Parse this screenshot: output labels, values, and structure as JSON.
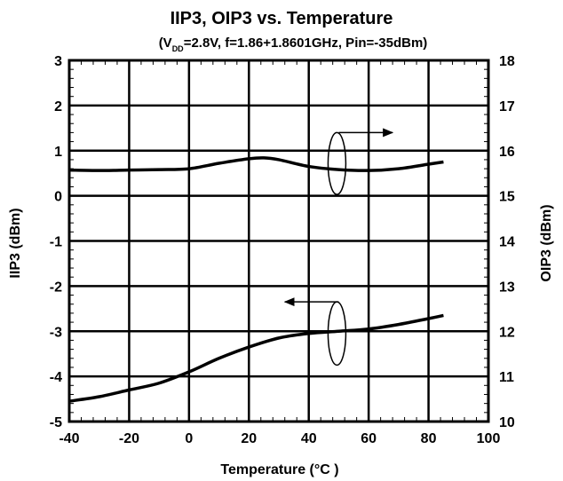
{
  "chart_data": {
    "type": "line",
    "title": "IIP3, OIP3 vs. Temperature",
    "subtitle": {
      "prefix": "(V",
      "subscript": "DD",
      "rest": "=2.8V, f=1.86+1.8601GHz, Pin=-35dBm)"
    },
    "xlabel": "Temperature (°C )",
    "ylabel_left": "IIP3 (dBm)",
    "ylabel_right": "OIP3 (dBm)",
    "xlim": [
      -40,
      100
    ],
    "ylim_left": [
      -5,
      3
    ],
    "ylim_right": [
      10,
      18
    ],
    "x_ticks": [
      "-40",
      "-20",
      "0",
      "20",
      "40",
      "60",
      "80",
      "100"
    ],
    "y_ticks_left": [
      "-5",
      "-4",
      "-3",
      "-2",
      "-1",
      "0",
      "1",
      "2",
      "3"
    ],
    "y_ticks_right": [
      "10",
      "11",
      "12",
      "13",
      "14",
      "15",
      "16",
      "17",
      "18"
    ],
    "grid": true,
    "series": [
      {
        "axis": "left",
        "x": [
          -40,
          -30,
          -20,
          -10,
          0,
          10,
          20,
          30,
          40,
          50,
          60,
          70,
          80,
          85
        ],
        "y": [
          -4.55,
          -4.45,
          -4.3,
          -4.15,
          -3.9,
          -3.6,
          -3.35,
          -3.15,
          -3.05,
          -3.0,
          -2.95,
          -2.85,
          -2.72,
          -2.65
        ]
      },
      {
        "axis": "right",
        "x": [
          -40,
          -30,
          -20,
          -10,
          0,
          10,
          20,
          25,
          30,
          40,
          50,
          60,
          70,
          80,
          85
        ],
        "y": [
          15.57,
          15.56,
          15.57,
          15.58,
          15.6,
          15.72,
          15.82,
          15.84,
          15.8,
          15.65,
          15.58,
          15.56,
          15.6,
          15.7,
          15.75
        ]
      }
    ],
    "annotations": [
      {
        "kind": "ellipse-arrow",
        "target_axis": "right",
        "x": 50,
        "y_range": [
          15.03,
          16.4
        ],
        "arrow_to_x": 68,
        "arrow_y": 16.4
      },
      {
        "kind": "ellipse-arrow",
        "target_axis": "left",
        "x": 50,
        "y_range": [
          -3.75,
          -2.35
        ],
        "arrow_to_x": 32,
        "arrow_y": -2.35
      }
    ]
  }
}
